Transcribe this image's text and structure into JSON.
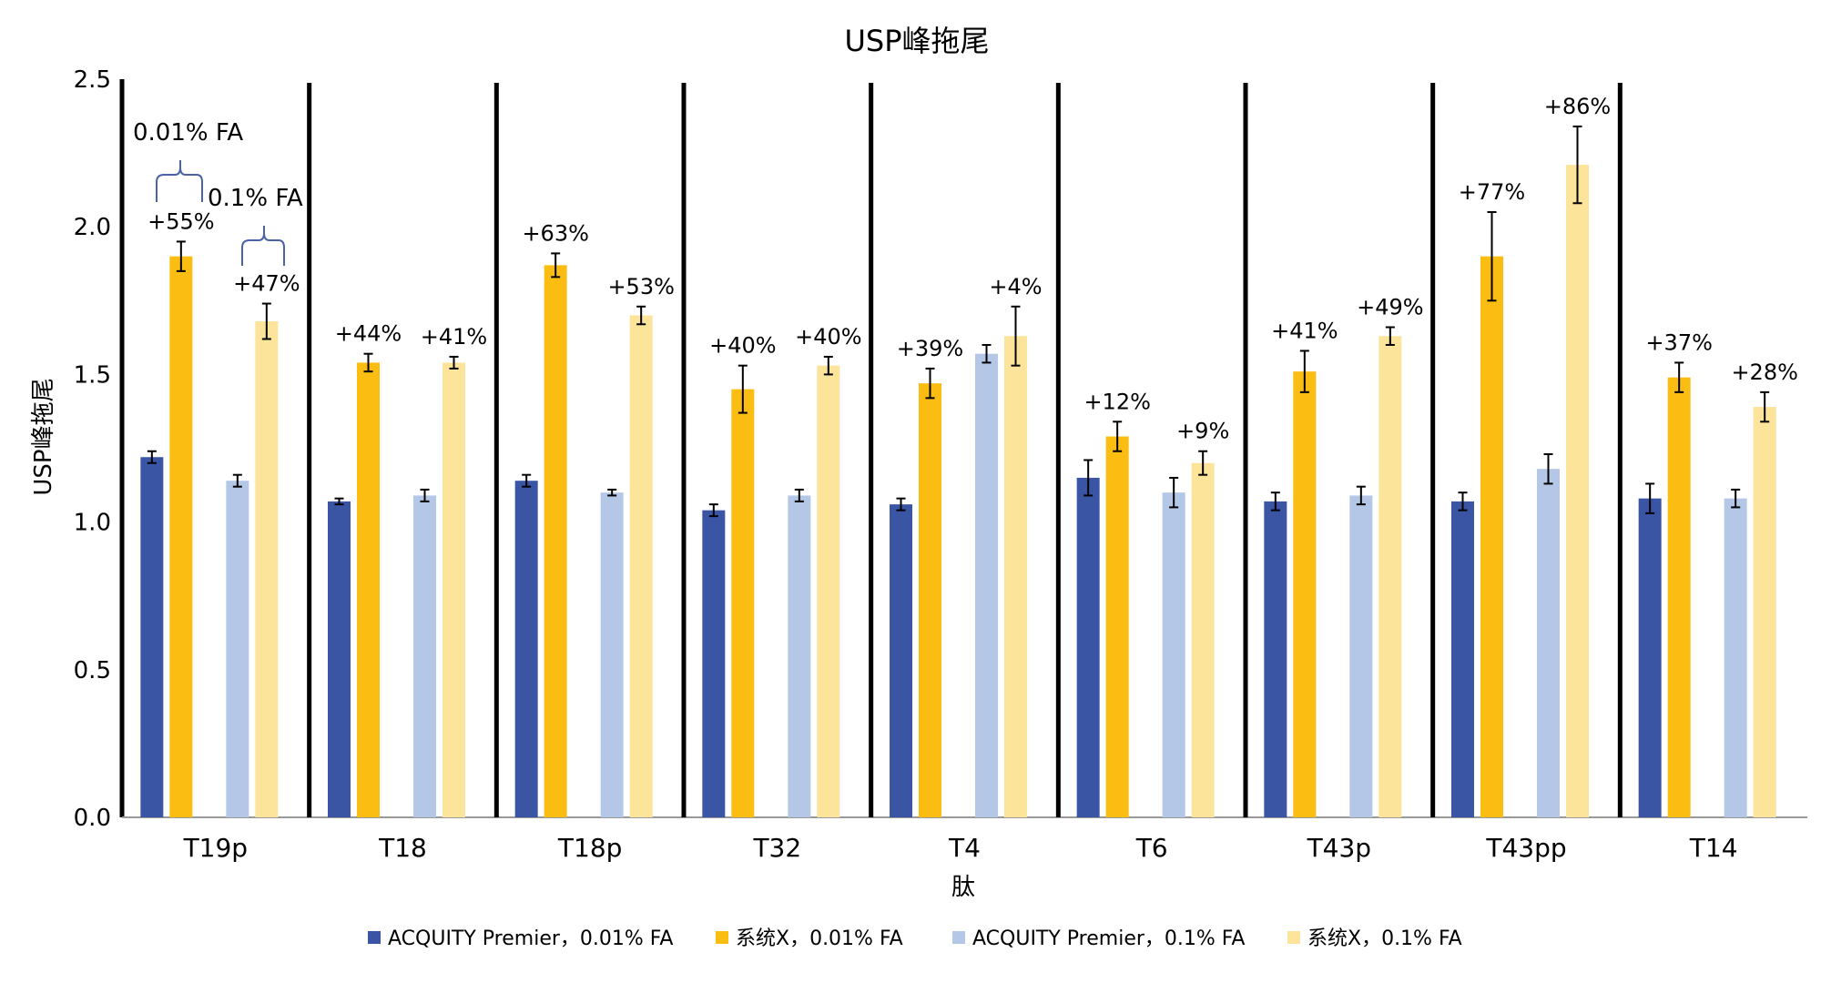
{
  "chart_data": {
    "type": "bar",
    "title": "USP峰拖尾",
    "xlabel": "肽",
    "ylabel": "USP峰拖尾",
    "ylim": [
      0,
      2.5
    ],
    "yticks": [
      "0.0",
      "0.5",
      "1.0",
      "1.5",
      "2.0",
      "2.5"
    ],
    "categories": [
      "T19p",
      "T18",
      "T18p",
      "T32",
      "T4",
      "T6",
      "T43p",
      "T43pp",
      "T14"
    ],
    "series": [
      {
        "name": "ACQUITY Premier，0.01% FA",
        "color": "#3a55a4",
        "values": [
          1.22,
          1.07,
          1.14,
          1.04,
          1.06,
          1.15,
          1.07,
          1.07,
          1.08
        ],
        "errors": [
          0.02,
          0.01,
          0.02,
          0.02,
          0.02,
          0.06,
          0.03,
          0.03,
          0.05
        ]
      },
      {
        "name": "系统X，0.01% FA",
        "color": "#fbbd12",
        "values": [
          1.9,
          1.54,
          1.87,
          1.45,
          1.47,
          1.29,
          1.51,
          1.9,
          1.49
        ],
        "errors": [
          0.05,
          0.03,
          0.04,
          0.08,
          0.05,
          0.05,
          0.07,
          0.15,
          0.05
        ]
      },
      {
        "name": "ACQUITY Premier，0.1% FA",
        "color": "#b4c7e7",
        "values": [
          1.14,
          1.09,
          1.1,
          1.09,
          1.57,
          1.1,
          1.09,
          1.18,
          1.08
        ],
        "errors": [
          0.02,
          0.02,
          0.01,
          0.02,
          0.03,
          0.05,
          0.03,
          0.05,
          0.03
        ]
      },
      {
        "name": "系统X，0.1% FA",
        "color": "#fde49b",
        "values": [
          1.68,
          1.54,
          1.7,
          1.53,
          1.63,
          1.2,
          1.63,
          2.21,
          1.39
        ],
        "errors": [
          0.06,
          0.02,
          0.03,
          0.03,
          0.1,
          0.04,
          0.03,
          0.13,
          0.05
        ]
      }
    ],
    "percent_labels_001": [
      "+55%",
      "+44%",
      "+63%",
      "+40%",
      "+39%",
      "+12%",
      "+41%",
      "+77%",
      "+37%"
    ],
    "percent_labels_01": [
      "+47%",
      "+41%",
      "+53%",
      "+40%",
      "+4%",
      "+9%",
      "+49%",
      "+86%",
      "+28%"
    ],
    "annotations": [
      "0.01% FA",
      "0.1% FA"
    ],
    "group_separators": true,
    "grid": false,
    "legend_position": "bottom"
  }
}
